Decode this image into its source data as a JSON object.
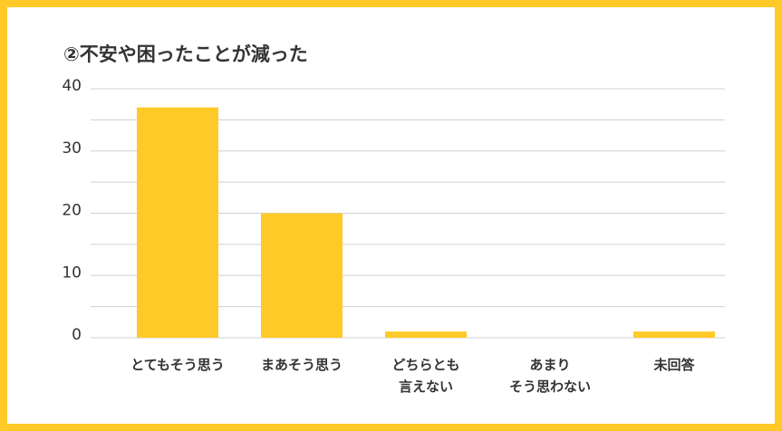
{
  "chart_data": {
    "type": "bar",
    "title": "②不安や困ったことが減った",
    "categories": [
      "とてもそう思う",
      "まあそう思う",
      "どちらとも\n言えない",
      "あまり\nそう思わない",
      "未回答"
    ],
    "values": [
      37,
      20,
      1,
      0,
      1
    ],
    "color": "#ffca28",
    "ylim": [
      0,
      40
    ],
    "yticks": [
      0,
      10,
      20,
      30,
      40
    ],
    "minor_yticks": [
      5,
      15,
      25,
      35
    ],
    "grid": true
  }
}
